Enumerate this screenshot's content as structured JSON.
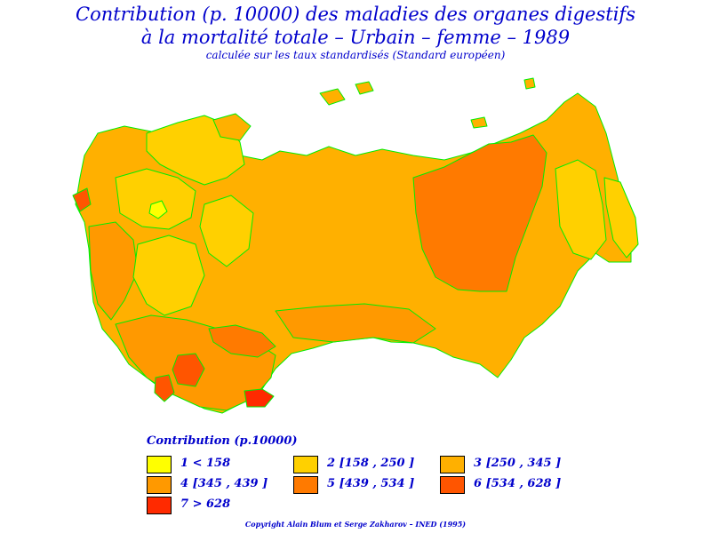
{
  "title_line1": "Contribution (p. 10000) des maladies des organes digestifs",
  "title_line2": "à la mortalité totale – Urbain – femme – 1989",
  "subtitle": "calculée sur les taux standardisés (Standard européen)",
  "legend": {
    "title": "Contribution (p.10000)",
    "items": [
      {
        "label": "1  <  158",
        "color": "#ffff00"
      },
      {
        "label": "2  [158  ,  250  ]",
        "color": "#ffd000"
      },
      {
        "label": "3  [250  ,  345  ]",
        "color": "#ffb000"
      },
      {
        "label": "4  [345  ,  439  ]",
        "color": "#ff9900"
      },
      {
        "label": "5  [439  ,  534  ]",
        "color": "#ff7a00"
      },
      {
        "label": "6  [534  ,  628  ]",
        "color": "#ff5500"
      },
      {
        "label": "7  >  628",
        "color": "#ff2a00"
      }
    ]
  },
  "copyright": "Copyright Alain Blum et Serge Zakharov – INED (1995)",
  "colors": {
    "region_border": "#00ee00",
    "text": "#0000cc"
  }
}
